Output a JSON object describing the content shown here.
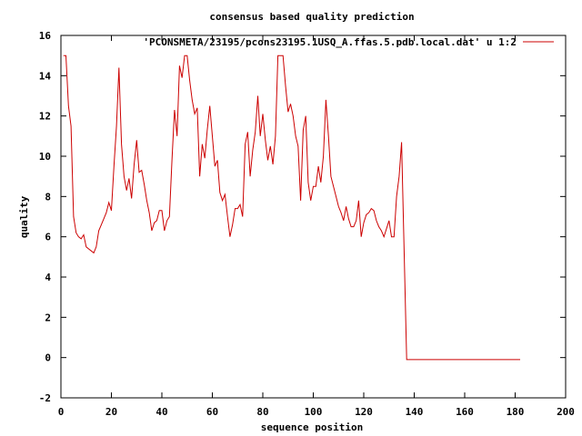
{
  "chart_data": {
    "type": "line",
    "title": "consensus based quality prediction",
    "xlabel": "sequence position",
    "ylabel": "quality",
    "xlim": [
      0,
      200
    ],
    "ylim": [
      -2,
      16
    ],
    "x_ticks": [
      "0",
      "20",
      "40",
      "60",
      "80",
      "100",
      "120",
      "140",
      "160",
      "180",
      "200"
    ],
    "y_ticks": [
      "-2",
      "0",
      "2",
      "4",
      "6",
      "8",
      "10",
      "12",
      "14",
      "16"
    ],
    "grid": false,
    "legend_position": "top-right",
    "colors": {
      "series": "#cc0000",
      "axis": "#000000",
      "background": "#ffffff"
    },
    "series": [
      {
        "name": "'PCONSMETA/23195/pcons23195.1USQ_A.ffas.5.pdb.local.dat' u 1:2",
        "x": [
          1,
          2,
          3,
          4,
          5,
          6,
          7,
          8,
          9,
          10,
          11,
          12,
          13,
          14,
          15,
          16,
          17,
          18,
          19,
          20,
          21,
          22,
          23,
          24,
          25,
          26,
          27,
          28,
          29,
          30,
          31,
          32,
          33,
          34,
          35,
          36,
          37,
          38,
          39,
          40,
          41,
          42,
          43,
          44,
          45,
          46,
          47,
          48,
          49,
          50,
          51,
          52,
          53,
          54,
          55,
          56,
          57,
          58,
          59,
          60,
          61,
          62,
          63,
          64,
          65,
          66,
          67,
          68,
          69,
          70,
          71,
          72,
          73,
          74,
          75,
          76,
          77,
          78,
          79,
          80,
          81,
          82,
          83,
          84,
          85,
          86,
          87,
          88,
          89,
          90,
          91,
          92,
          93,
          94,
          95,
          96,
          97,
          98,
          99,
          100,
          101,
          102,
          103,
          104,
          105,
          106,
          107,
          108,
          109,
          110,
          111,
          112,
          113,
          114,
          115,
          116,
          117,
          118,
          119,
          120,
          121,
          122,
          123,
          124,
          125,
          126,
          127,
          128,
          129,
          130,
          131,
          132,
          133,
          134,
          135,
          136,
          137,
          138,
          182
        ],
        "y": [
          15.0,
          15.0,
          12.5,
          11.5,
          7.0,
          6.2,
          6.0,
          5.9,
          6.1,
          5.5,
          5.4,
          5.3,
          5.2,
          5.5,
          6.3,
          6.6,
          6.9,
          7.2,
          7.7,
          7.3,
          9.5,
          11.5,
          14.4,
          10.6,
          9.0,
          8.3,
          8.9,
          7.9,
          9.6,
          10.8,
          9.2,
          9.3,
          8.6,
          7.8,
          7.2,
          6.3,
          6.7,
          6.8,
          7.3,
          7.3,
          6.3,
          6.8,
          7.0,
          9.8,
          12.3,
          11.0,
          14.5,
          13.9,
          15.0,
          15.0,
          13.8,
          12.8,
          12.1,
          12.4,
          9.0,
          10.6,
          9.9,
          11.3,
          12.5,
          11.0,
          9.5,
          9.8,
          8.2,
          7.8,
          8.1,
          7.0,
          6.0,
          6.6,
          7.4,
          7.4,
          7.6,
          7.0,
          10.6,
          11.2,
          9.0,
          10.3,
          11.2,
          13.0,
          11.0,
          12.1,
          10.8,
          9.8,
          10.5,
          9.6,
          11.0,
          15.0,
          15.0,
          15.0,
          13.5,
          12.2,
          12.6,
          12.0,
          11.0,
          10.5,
          7.8,
          11.3,
          12.0,
          8.7,
          7.8,
          8.5,
          8.5,
          9.5,
          8.7,
          10.0,
          12.8,
          11.0,
          9.0,
          8.5,
          8.0,
          7.5,
          7.2,
          6.8,
          7.5,
          6.9,
          6.5,
          6.5,
          6.8,
          7.8,
          6.0,
          6.7,
          7.1,
          7.2,
          7.4,
          7.3,
          6.8,
          6.5,
          6.3,
          6.0,
          6.4,
          6.8,
          6.0,
          6.0,
          8.0,
          9.0,
          10.7,
          5.3,
          -0.1,
          -0.1,
          -0.1
        ]
      }
    ]
  }
}
